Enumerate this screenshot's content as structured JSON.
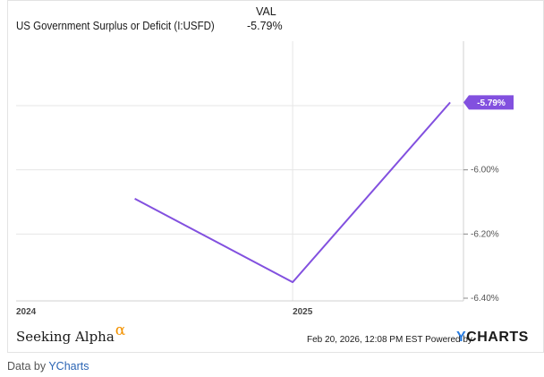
{
  "header": {
    "title": "US Government Surplus or Deficit (I:USFD)",
    "col_label": "VAL",
    "value": "-5.79%"
  },
  "chart_data": {
    "type": "line",
    "title": "US Government Surplus or Deficit (I:USFD)",
    "x_tick_labels": [
      "2024",
      "2025"
    ],
    "y_tick_labels": [
      "-6.00%",
      "-6.20%",
      "-6.40%"
    ],
    "ylim": [
      -6.4,
      -5.79
    ],
    "series": [
      {
        "name": "US Government Surplus or Deficit (I:USFD)",
        "color": "#8250df",
        "x": [
          "2024-01",
          "2025-01",
          "2026-01"
        ],
        "y": [
          -6.09,
          -6.35,
          -5.79
        ]
      }
    ],
    "last_value_label": "-5.79%",
    "grid": true,
    "y_axis_position": "right"
  },
  "footer": {
    "brand": "Seeking Alpha",
    "brand_symbol": "α",
    "timestamp": "Feb 20, 2026, 12:08 PM EST Powered by",
    "ycharts_y": "Y",
    "ycharts_rest": "CHARTS"
  },
  "credit": {
    "prefix": "Data by ",
    "link": "YCharts"
  }
}
